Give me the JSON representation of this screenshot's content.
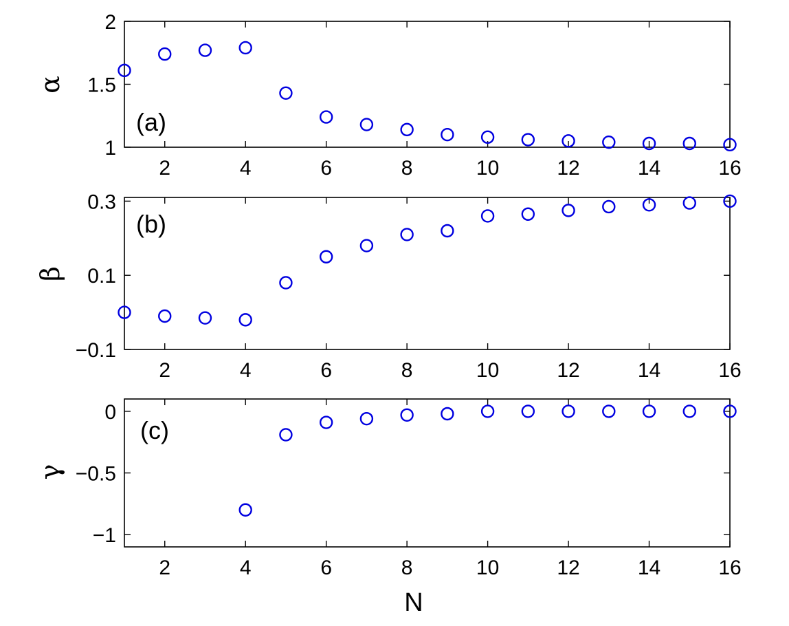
{
  "colors": {
    "marker": "#0000e0",
    "axes": "#000000"
  },
  "chart_data": [
    {
      "type": "scatter",
      "panel_label": "(a)",
      "ylabel": "α",
      "xlabel": "",
      "xlim": [
        1,
        16
      ],
      "ylim": [
        1,
        2
      ],
      "xticks": [
        2,
        4,
        6,
        8,
        10,
        12,
        14,
        16
      ],
      "yticks": [
        1,
        1.5,
        2
      ],
      "ytick_labels": [
        "1",
        "1.5",
        "2"
      ],
      "grid": false,
      "marker": "open-circle",
      "x": [
        1,
        2,
        3,
        4,
        5,
        6,
        7,
        8,
        9,
        10,
        11,
        12,
        13,
        14,
        15,
        16
      ],
      "y": [
        1.61,
        1.74,
        1.77,
        1.79,
        1.43,
        1.24,
        1.18,
        1.14,
        1.1,
        1.08,
        1.06,
        1.05,
        1.04,
        1.03,
        1.03,
        1.02
      ]
    },
    {
      "type": "scatter",
      "panel_label": "(b)",
      "ylabel": "β",
      "xlabel": "",
      "xlim": [
        1,
        16
      ],
      "ylim": [
        -0.1,
        0.31
      ],
      "xticks": [
        2,
        4,
        6,
        8,
        10,
        12,
        14,
        16
      ],
      "yticks": [
        -0.1,
        0.1,
        0.3
      ],
      "ytick_labels": [
        "−0.1",
        "0.1",
        "0.3"
      ],
      "grid": false,
      "marker": "open-circle",
      "x": [
        1,
        2,
        3,
        4,
        5,
        6,
        7,
        8,
        9,
        10,
        11,
        12,
        13,
        14,
        15,
        16
      ],
      "y": [
        0.0,
        -0.01,
        -0.015,
        -0.02,
        0.08,
        0.15,
        0.18,
        0.21,
        0.22,
        0.26,
        0.265,
        0.275,
        0.285,
        0.29,
        0.295,
        0.3
      ]
    },
    {
      "type": "scatter",
      "panel_label": "(c)",
      "ylabel": "γ",
      "xlabel": "N",
      "xlim": [
        1,
        16
      ],
      "ylim": [
        -1.1,
        0.1
      ],
      "xticks": [
        2,
        4,
        6,
        8,
        10,
        12,
        14,
        16
      ],
      "yticks": [
        -1,
        -0.5,
        0
      ],
      "ytick_labels": [
        "−1",
        "−0.5",
        "0"
      ],
      "grid": false,
      "marker": "open-circle",
      "x": [
        4,
        5,
        6,
        7,
        8,
        9,
        10,
        11,
        12,
        13,
        14,
        15,
        16
      ],
      "y": [
        -0.8,
        -0.19,
        -0.09,
        -0.06,
        -0.03,
        -0.02,
        0.0,
        0.0,
        0.0,
        0.0,
        0.0,
        0.0,
        0.0
      ]
    }
  ]
}
